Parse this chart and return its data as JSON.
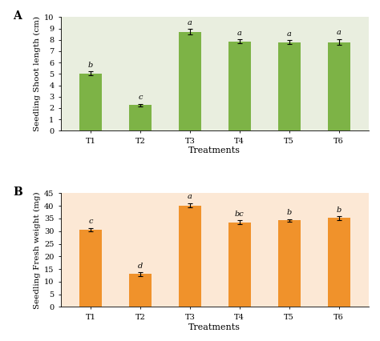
{
  "panel_A": {
    "categories": [
      "T1",
      "T2",
      "T3",
      "T4",
      "T5",
      "T6"
    ],
    "values": [
      5.05,
      2.25,
      8.7,
      7.85,
      7.8,
      7.8
    ],
    "errors": [
      0.15,
      0.12,
      0.25,
      0.18,
      0.15,
      0.25
    ],
    "letters": [
      "b",
      "c",
      "a",
      "a",
      "a",
      "a"
    ],
    "bar_color": "#7db346",
    "edge_color": "#6a9c3a",
    "bg_color": "#e9eedf",
    "ylabel": "Seedling Shoot length (cm)",
    "xlabel": "Treatments",
    "ylim": [
      0,
      10
    ],
    "yticks": [
      0,
      1,
      2,
      3,
      4,
      5,
      6,
      7,
      8,
      9,
      10
    ],
    "panel_label": "A"
  },
  "panel_B": {
    "categories": [
      "T1",
      "T2",
      "T3",
      "T4",
      "T5",
      "T6"
    ],
    "values": [
      30.5,
      13.0,
      40.2,
      33.5,
      34.2,
      35.2
    ],
    "errors": [
      0.7,
      0.7,
      0.8,
      0.7,
      0.6,
      0.7
    ],
    "letters": [
      "c",
      "d",
      "a",
      "bc",
      "b",
      "b"
    ],
    "bar_color": "#f0922b",
    "edge_color": "#d07a1a",
    "bg_color": "#fce8d5",
    "ylabel": "Seedling Fresh weight (mg)",
    "xlabel": "Treatments",
    "ylim": [
      0,
      45
    ],
    "yticks": [
      0,
      5,
      10,
      15,
      20,
      25,
      30,
      35,
      40,
      45
    ],
    "panel_label": "B"
  },
  "fig_facecolor": "#ffffff",
  "bar_width": 0.45,
  "font_family": "DejaVu Serif"
}
